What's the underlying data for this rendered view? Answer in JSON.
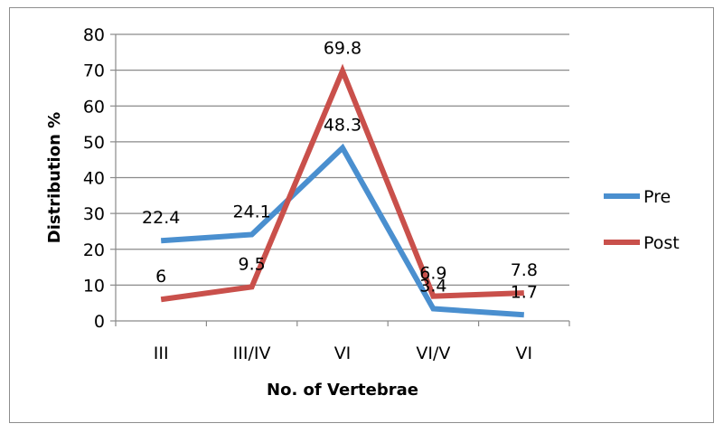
{
  "chart_data": {
    "type": "line",
    "categories": [
      "III",
      "III/IV",
      "VI",
      "VI/V",
      "VI"
    ],
    "series": [
      {
        "name": "Pre",
        "color": "#4a8fcf",
        "values": [
          22.4,
          24.1,
          48.3,
          3.4,
          1.7
        ]
      },
      {
        "name": "Post",
        "color": "#c9504b",
        "values": [
          6,
          9.5,
          69.8,
          6.9,
          7.8
        ]
      }
    ],
    "value_labels": [
      [
        "22.4",
        "24.1",
        "48.3",
        "3.4",
        "1.7"
      ],
      [
        "6",
        "9.5",
        "69.8",
        "6.9",
        "7.8"
      ]
    ],
    "title": "",
    "xlabel": "No. of Vertebrae",
    "ylabel": "Distribution %",
    "ylim": [
      0,
      80
    ],
    "yticks": [
      "0",
      "10",
      "20",
      "30",
      "40",
      "50",
      "60",
      "70",
      "80"
    ],
    "grid": true,
    "legend_position": "right"
  }
}
